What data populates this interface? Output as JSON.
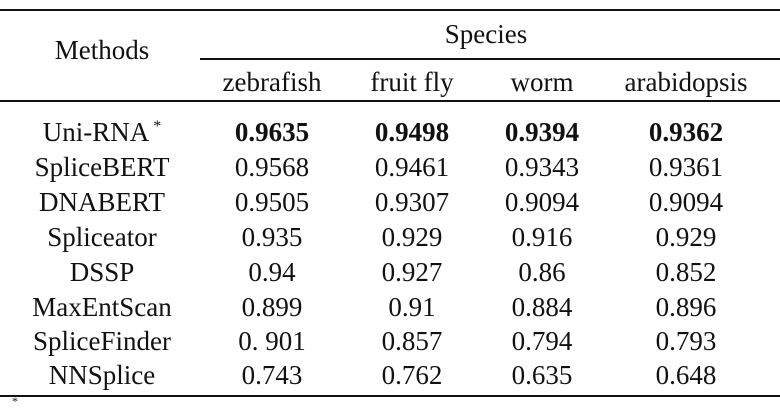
{
  "table": {
    "methods_header": "Methods",
    "species_header": "Species",
    "species_columns": [
      "zebrafish",
      "fruit fly",
      "worm",
      "arabidopsis"
    ],
    "rows": [
      {
        "method": "Uni-RNA",
        "marker": "*",
        "values": [
          "0.9635",
          "0.9498",
          "0.9394",
          "0.9362"
        ],
        "bold": true
      },
      {
        "method": "SpliceBERT",
        "values": [
          "0.9568",
          "0.9461",
          "0.9343",
          "0.9361"
        ]
      },
      {
        "method": "DNABERT",
        "values": [
          "0.9505",
          "0.9307",
          "0.9094",
          "0.9094"
        ]
      },
      {
        "method": "Spliceator",
        "values": [
          "0.935",
          "0.929",
          "0.916",
          "0.929"
        ]
      },
      {
        "method": "DSSP",
        "values": [
          "0.94",
          "0.927",
          "0.86",
          "0.852"
        ]
      },
      {
        "method": "MaxEntScan",
        "values": [
          "0.899",
          "0.91",
          "0.884",
          "0.896"
        ]
      },
      {
        "method": "SpliceFinder",
        "values": [
          "0. 901",
          "0.857",
          "0.794",
          "0.793"
        ]
      },
      {
        "method": "NNSplice",
        "values": [
          "0.743",
          "0.762",
          "0.635",
          "0.648"
        ]
      }
    ],
    "footnote_marker": "*"
  }
}
